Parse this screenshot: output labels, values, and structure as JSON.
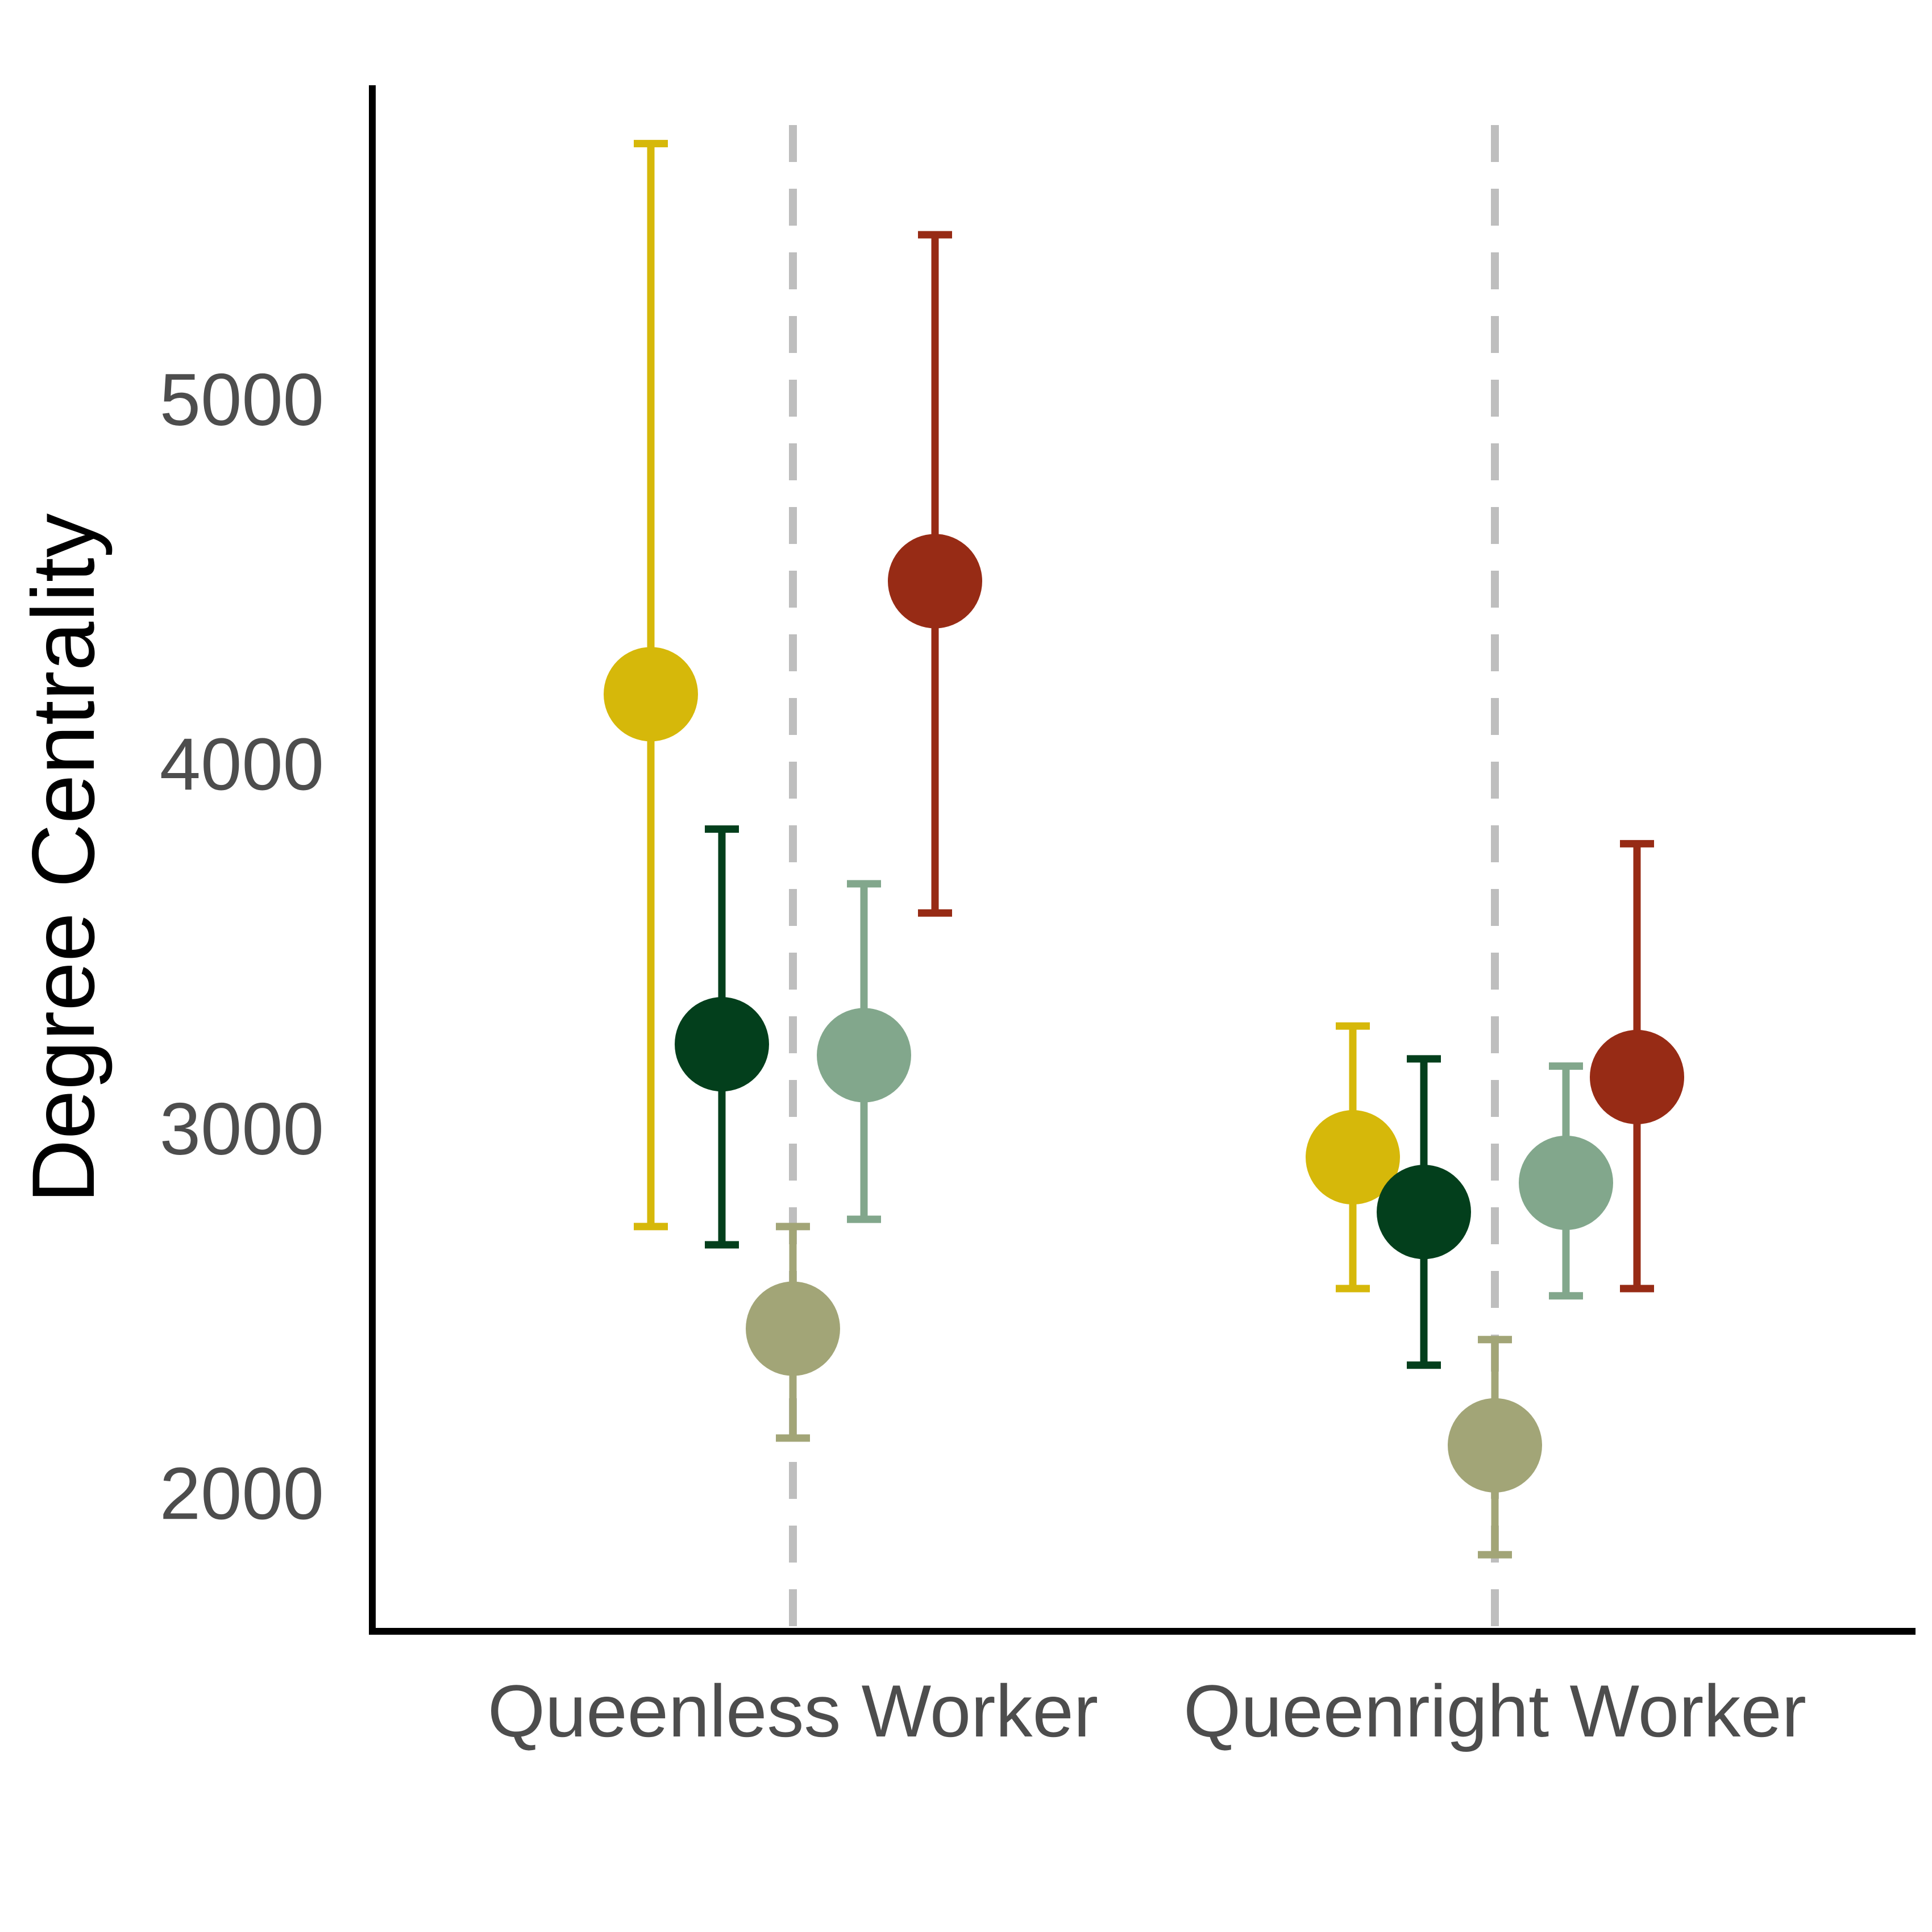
{
  "chart_data": {
    "type": "scatter",
    "title": "",
    "xlabel": "",
    "ylabel": "Degree Centrality",
    "categories": [
      "Queenless Worker",
      "Queenright Worker"
    ],
    "ylim": [
      1620,
      5860
    ],
    "yticks": [
      2000,
      3000,
      4000,
      5000
    ],
    "grid": false,
    "legend": "none",
    "reference_lines": "dashed vertical line at each category",
    "series": [
      {
        "color": "#D6B80A",
        "points": [
          {
            "category": "Queenless Worker",
            "y": 4190,
            "ymin": 2730,
            "ymax": 5700
          },
          {
            "category": "Queenright Worker",
            "y": 2920,
            "ymin": 2560,
            "ymax": 3280
          }
        ]
      },
      {
        "color": "#033F1C",
        "points": [
          {
            "category": "Queenless Worker",
            "y": 3230,
            "ymin": 2680,
            "ymax": 3820
          },
          {
            "category": "Queenright Worker",
            "y": 2770,
            "ymin": 2350,
            "ymax": 3190
          }
        ]
      },
      {
        "color": "#A2A577",
        "points": [
          {
            "category": "Queenless Worker",
            "y": 2450,
            "ymin": 2150,
            "ymax": 2730
          },
          {
            "category": "Queenright Worker",
            "y": 2130,
            "ymin": 1830,
            "ymax": 2420
          }
        ]
      },
      {
        "color": "#82A78C",
        "points": [
          {
            "category": "Queenless Worker",
            "y": 3200,
            "ymin": 2750,
            "ymax": 3670
          },
          {
            "category": "Queenright Worker",
            "y": 2850,
            "ymin": 2540,
            "ymax": 3170
          }
        ]
      },
      {
        "color": "#972B15",
        "points": [
          {
            "category": "Queenless Worker",
            "y": 4500,
            "ymin": 3590,
            "ymax": 5450
          },
          {
            "category": "Queenright Worker",
            "y": 3140,
            "ymin": 2560,
            "ymax": 3780
          }
        ]
      }
    ]
  }
}
